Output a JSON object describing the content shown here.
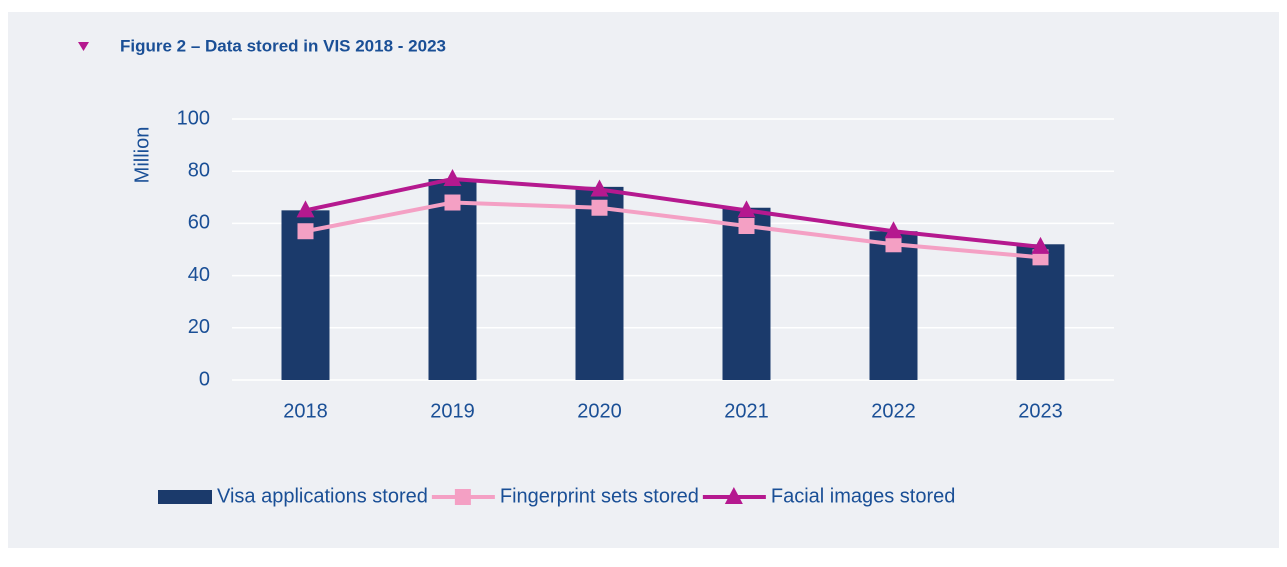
{
  "chart_data": {
    "type": "bar_line",
    "title": "Figure 2 – Data stored in VIS 2018 - 2023",
    "y_label": "Million",
    "categories": [
      "2018",
      "2019",
      "2020",
      "2021",
      "2022",
      "2023"
    ],
    "series": [
      {
        "name": "Visa applications stored",
        "type": "bar",
        "color": "#1b3a6b",
        "values": [
          65,
          77,
          74,
          66,
          57,
          52
        ]
      },
      {
        "name": "Fingerprint sets stored",
        "type": "line",
        "marker": "square",
        "color": "#f4a0c4",
        "values": [
          57,
          68,
          66,
          59,
          52,
          47
        ]
      },
      {
        "name": "Facial images stored",
        "type": "line",
        "marker": "triangle",
        "color": "#b5198f",
        "values": [
          65,
          77,
          73,
          65,
          57,
          51
        ]
      }
    ],
    "ylim": [
      0,
      100
    ],
    "yticks": [
      0,
      20,
      40,
      60,
      80,
      100
    ],
    "grid": true,
    "legend": "bottom"
  }
}
